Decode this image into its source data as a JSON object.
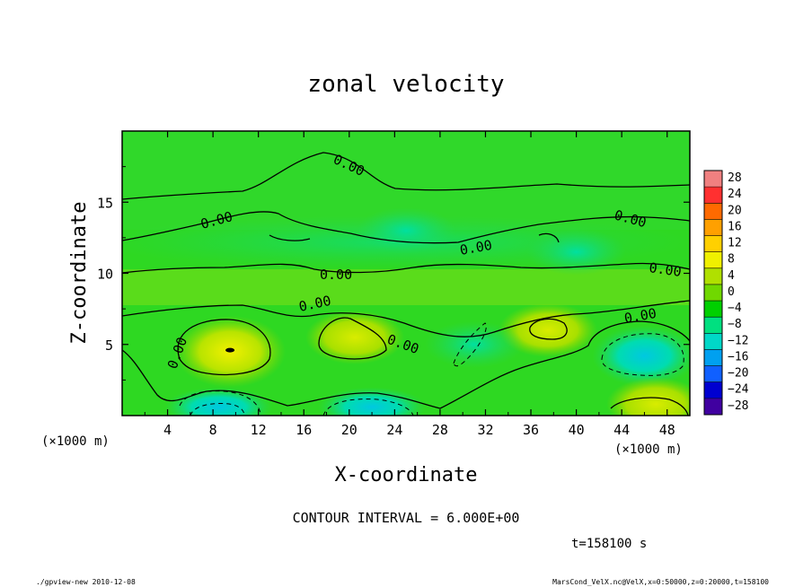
{
  "chart_data": {
    "type": "heatmap",
    "title": "zonal velocity",
    "xlabel": "X-coordinate",
    "ylabel": "Z-coordinate",
    "x_unit": "(×1000 m)",
    "y_unit": "(×1000 m)",
    "xlim": [
      0,
      50
    ],
    "ylim": [
      0,
      20
    ],
    "x_ticks": [
      4,
      8,
      12,
      16,
      20,
      24,
      28,
      32,
      36,
      40,
      44,
      48
    ],
    "y_ticks": [
      5,
      10,
      15
    ],
    "colorbar": {
      "levels": [
        "28",
        "24",
        "20",
        "16",
        "12",
        "8",
        "4",
        "0",
        "−4",
        "−8",
        "−12",
        "−16",
        "−20",
        "−24",
        "−28"
      ],
      "colors": [
        "#f08080",
        "#ff3030",
        "#ff6a00",
        "#ffa000",
        "#ffd000",
        "#f0f000",
        "#b0e000",
        "#70d800",
        "#00d000",
        "#00e080",
        "#00d8c8",
        "#00a0f0",
        "#1060ff",
        "#0000d0",
        "#4000a0"
      ]
    },
    "contour_labels": [
      "0.00",
      "0.00",
      "0.00",
      "0.00",
      "0.00",
      "0.00",
      "0.00",
      "0.00",
      "0.00",
      "0.00"
    ],
    "contour_interval": "CONTOUR INTERVAL = 6.000E+00",
    "time_label": "t=158100 s",
    "footer_left": "./gpview-new  2010-12-08",
    "footer_right": "MarsCond_VelX.nc@VelX,x=0:50000,z=0:20000,t=158100",
    "regions": [
      {
        "x": 9.5,
        "y": 4.5,
        "value": 8
      },
      {
        "x": 20.5,
        "y": 5.5,
        "value": 6
      },
      {
        "x": 37.5,
        "y": 6.0,
        "value": 5
      },
      {
        "x": 46.0,
        "y": 4.2,
        "value": -7
      },
      {
        "x": 8.5,
        "y": 0.6,
        "value": -12
      },
      {
        "x": 22.0,
        "y": 0.6,
        "value": -10
      },
      {
        "x": 47.0,
        "y": 0.8,
        "value": 6
      },
      {
        "x": 31.0,
        "y": 5.0,
        "value": -4
      },
      {
        "x": 25.0,
        "y": 13.0,
        "value": -2
      },
      {
        "x": 40.0,
        "y": 11.5,
        "value": -1
      }
    ]
  }
}
